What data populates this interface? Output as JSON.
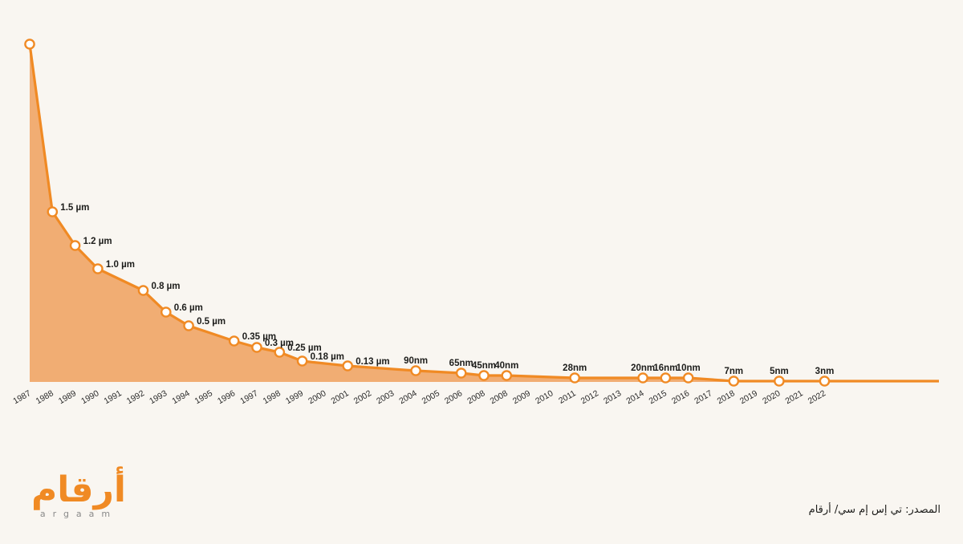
{
  "chart_data": {
    "type": "area",
    "title": "",
    "xlabel": "",
    "ylabel": "",
    "y_unit": "nm",
    "y_scale": "linear",
    "grid": false,
    "legend": "none",
    "colors": {
      "line": "#f08a24",
      "fill": "#f1ad73",
      "marker_fill": "#ffffff",
      "background": "#f9f6f1"
    },
    "x_tick_labels": [
      "1987",
      "1988",
      "1989",
      "1990",
      "1991",
      "1992",
      "1993",
      "1994",
      "1995",
      "1996",
      "1997",
      "1998",
      "1999",
      "2000",
      "2001",
      "2002",
      "2003",
      "2004",
      "2005",
      "2006",
      "2008",
      "2008",
      "2009",
      "2010",
      "2011",
      "2012",
      "2013",
      "2014",
      "2015",
      "2016",
      "2017",
      "2018",
      "2019",
      "2020",
      "2021",
      "2022"
    ],
    "points": [
      {
        "x_index": 0,
        "value": 6500,
        "label": ""
      },
      {
        "x_index": 1,
        "value": 1500,
        "label": "1.5 µm"
      },
      {
        "x_index": 2,
        "value": 1200,
        "label": "1.2 µm"
      },
      {
        "x_index": 3,
        "value": 1000,
        "label": "1.0 µm"
      },
      {
        "x_index": 5,
        "value": 800,
        "label": "0.8 µm"
      },
      {
        "x_index": 6,
        "value": 600,
        "label": "0.6 µm"
      },
      {
        "x_index": 7,
        "value": 500,
        "label": "0.5 µm"
      },
      {
        "x_index": 9,
        "value": 350,
        "label": "0.35 µm"
      },
      {
        "x_index": 10,
        "value": 300,
        "label": "0.3 µm"
      },
      {
        "x_index": 11,
        "value": 250,
        "label": "0.25 µm"
      },
      {
        "x_index": 12,
        "value": 180,
        "label": "0.18 µm"
      },
      {
        "x_index": 14,
        "value": 130,
        "label": "0.13 µm"
      },
      {
        "x_index": 17,
        "value": 90,
        "label": "90nm"
      },
      {
        "x_index": 19,
        "value": 65,
        "label": "65nm"
      },
      {
        "x_index": 20,
        "value": 45,
        "label": "45nm"
      },
      {
        "x_index": 21,
        "value": 40,
        "label": "40nm"
      },
      {
        "x_index": 24,
        "value": 28,
        "label": "28nm"
      },
      {
        "x_index": 27,
        "value": 20,
        "label": "20nm"
      },
      {
        "x_index": 28,
        "value": 16,
        "label": "16nm"
      },
      {
        "x_index": 29,
        "value": 10,
        "label": "10nm"
      },
      {
        "x_index": 31,
        "value": 7,
        "label": "7nm"
      },
      {
        "x_index": 33,
        "value": 5,
        "label": "5nm"
      },
      {
        "x_index": 35,
        "value": 3,
        "label": "3nm"
      }
    ]
  },
  "branding": {
    "logo_ar": "أرقام",
    "logo_en": "argaam",
    "source": "المصدر: تي إس إم سي/ أرقام"
  }
}
